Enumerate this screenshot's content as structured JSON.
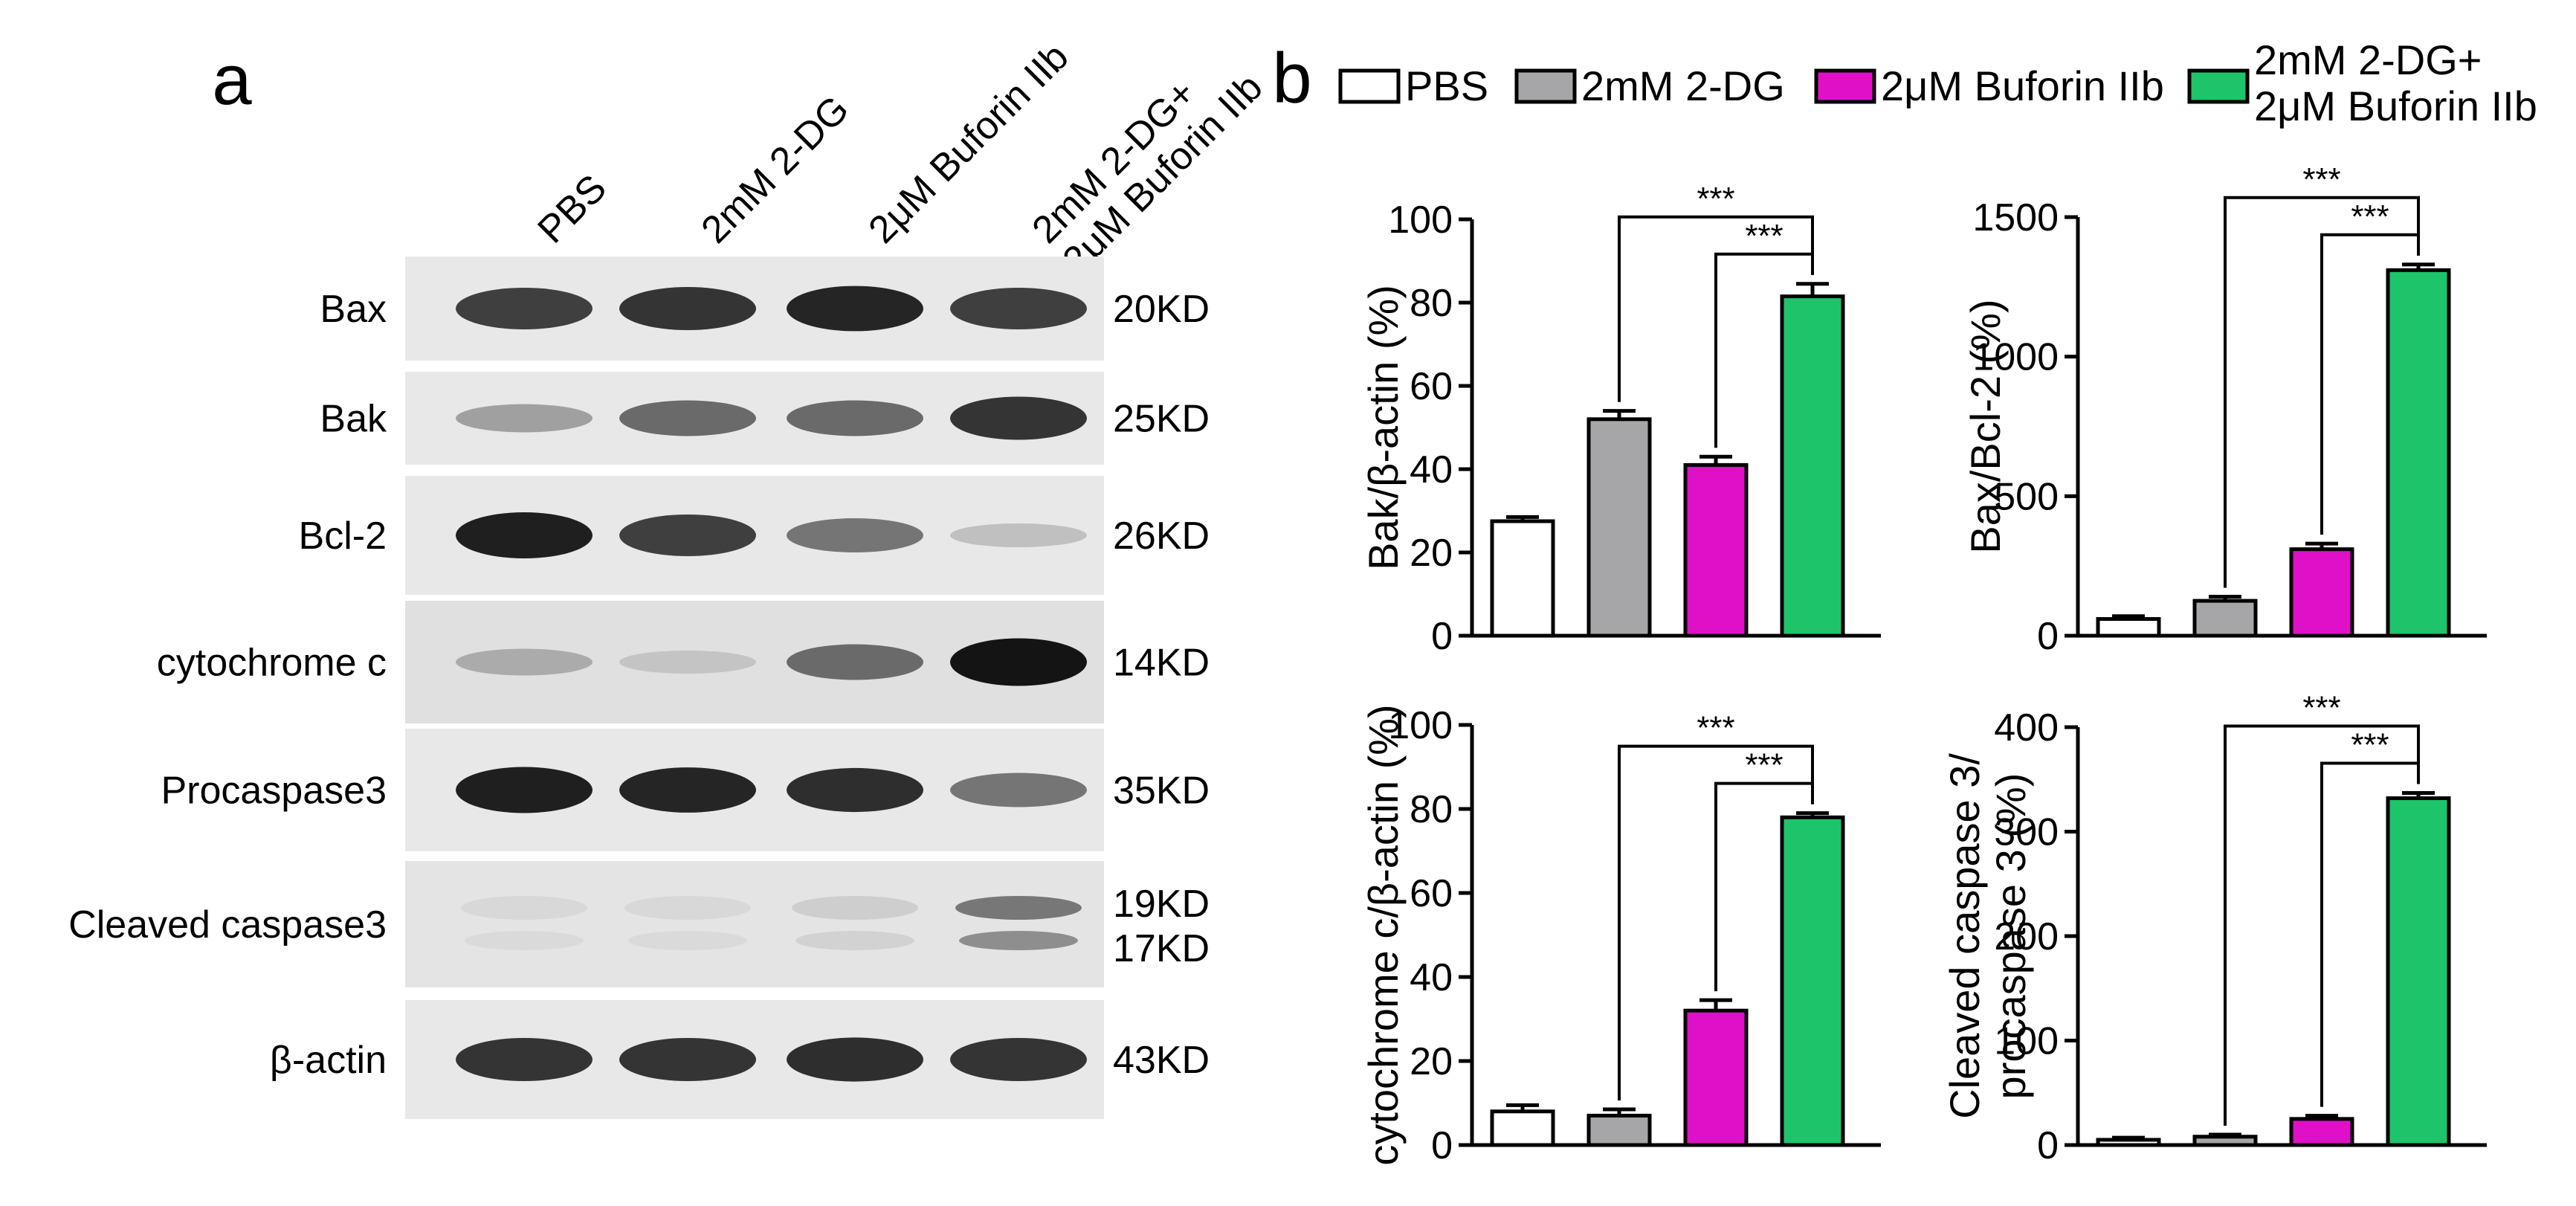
{
  "panel_a": {
    "label": "a",
    "lanes": [
      "PBS",
      "2mM 2-DG",
      "2μM Buforin IIb",
      "2mM 2-DG+\n2μM Buforin IIb"
    ],
    "blots": [
      {
        "protein": "Bax",
        "size": "20KD",
        "intensity": [
          0.8,
          0.85,
          0.92,
          0.8
        ]
      },
      {
        "protein": "Bak",
        "size": "25KD",
        "intensity": [
          0.35,
          0.6,
          0.6,
          0.85
        ]
      },
      {
        "protein": "Bcl-2",
        "size": "26KD",
        "intensity": [
          0.95,
          0.8,
          0.55,
          0.2
        ]
      },
      {
        "protein": "cytochrome c",
        "size": "14KD",
        "intensity": [
          0.3,
          0.18,
          0.6,
          1.0
        ]
      },
      {
        "protein": "Procaspase3",
        "size": "35KD",
        "intensity": [
          0.95,
          0.92,
          0.88,
          0.55
        ]
      },
      {
        "protein": "Cleaved caspase3",
        "size": [
          "19KD",
          "17KD"
        ],
        "intensity": [
          0.1,
          0.1,
          0.15,
          0.6
        ]
      },
      {
        "protein": "β-actin",
        "size": "43KD",
        "intensity": [
          0.85,
          0.85,
          0.88,
          0.85
        ]
      }
    ]
  },
  "panel_b": {
    "label": "b",
    "legend": [
      {
        "name": "PBS",
        "color": "#ffffff"
      },
      {
        "name": "2mM 2-DG",
        "color": "#a6a6a8"
      },
      {
        "name": "2μM Buforin IIb",
        "color": "#e010c8"
      },
      {
        "name": "2mM 2-DG+\n2μM Buforin IIb",
        "color": "#1ec46a"
      }
    ],
    "significance_label": "***"
  },
  "chart_data": [
    {
      "type": "bar",
      "ylabel": "Bak/β-actin (%)",
      "categories": [
        "PBS",
        "2mM 2-DG",
        "2μM Buforin IIb",
        "2mM 2-DG+ 2μM Buforin IIb"
      ],
      "values": [
        27.5,
        52,
        41,
        81.5
      ],
      "errors": [
        1,
        2,
        2,
        3
      ],
      "ylim": [
        0,
        100
      ],
      "yticks": [
        0,
        20,
        40,
        60,
        80,
        100
      ],
      "significance": [
        {
          "from": 1,
          "to": 3,
          "label": "***"
        },
        {
          "from": 2,
          "to": 3,
          "label": "***"
        }
      ]
    },
    {
      "type": "bar",
      "ylabel": "Bax/Bcl-2 (%)",
      "categories": [
        "PBS",
        "2mM 2-DG",
        "2μM Buforin IIb",
        "2mM 2-DG+ 2μM Buforin IIb"
      ],
      "values": [
        60,
        125,
        310,
        1310
      ],
      "errors": [
        10,
        15,
        20,
        20
      ],
      "ylim": [
        0,
        1500
      ],
      "yticks": [
        0,
        500,
        1000,
        1500
      ],
      "significance": [
        {
          "from": 1,
          "to": 3,
          "label": "***"
        },
        {
          "from": 2,
          "to": 3,
          "label": "***"
        }
      ]
    },
    {
      "type": "bar",
      "ylabel": "cytochrome c/β-actin (%)",
      "categories": [
        "PBS",
        "2mM 2-DG",
        "2μM Buforin IIb",
        "2mM 2-DG+ 2μM Buforin IIb"
      ],
      "values": [
        8,
        7,
        32,
        78
      ],
      "errors": [
        1.5,
        1.5,
        2.5,
        1
      ],
      "ylim": [
        0,
        100
      ],
      "yticks": [
        0,
        20,
        40,
        60,
        80,
        100
      ],
      "significance": [
        {
          "from": 1,
          "to": 3,
          "label": "***"
        },
        {
          "from": 2,
          "to": 3,
          "label": "***"
        }
      ]
    },
    {
      "type": "bar",
      "ylabel": "Cleaved caspase 3/\nprocaspase 3 (%)",
      "categories": [
        "PBS",
        "2mM 2-DG",
        "2μM Buforin IIb",
        "2mM 2-DG+ 2μM Buforin IIb"
      ],
      "values": [
        5,
        8,
        25,
        332
      ],
      "errors": [
        2,
        2,
        3,
        5
      ],
      "ylim": [
        0,
        400
      ],
      "yticks": [
        0,
        100,
        200,
        300,
        400
      ],
      "significance": [
        {
          "from": 1,
          "to": 3,
          "label": "***"
        },
        {
          "from": 2,
          "to": 3,
          "label": "***"
        }
      ]
    }
  ]
}
